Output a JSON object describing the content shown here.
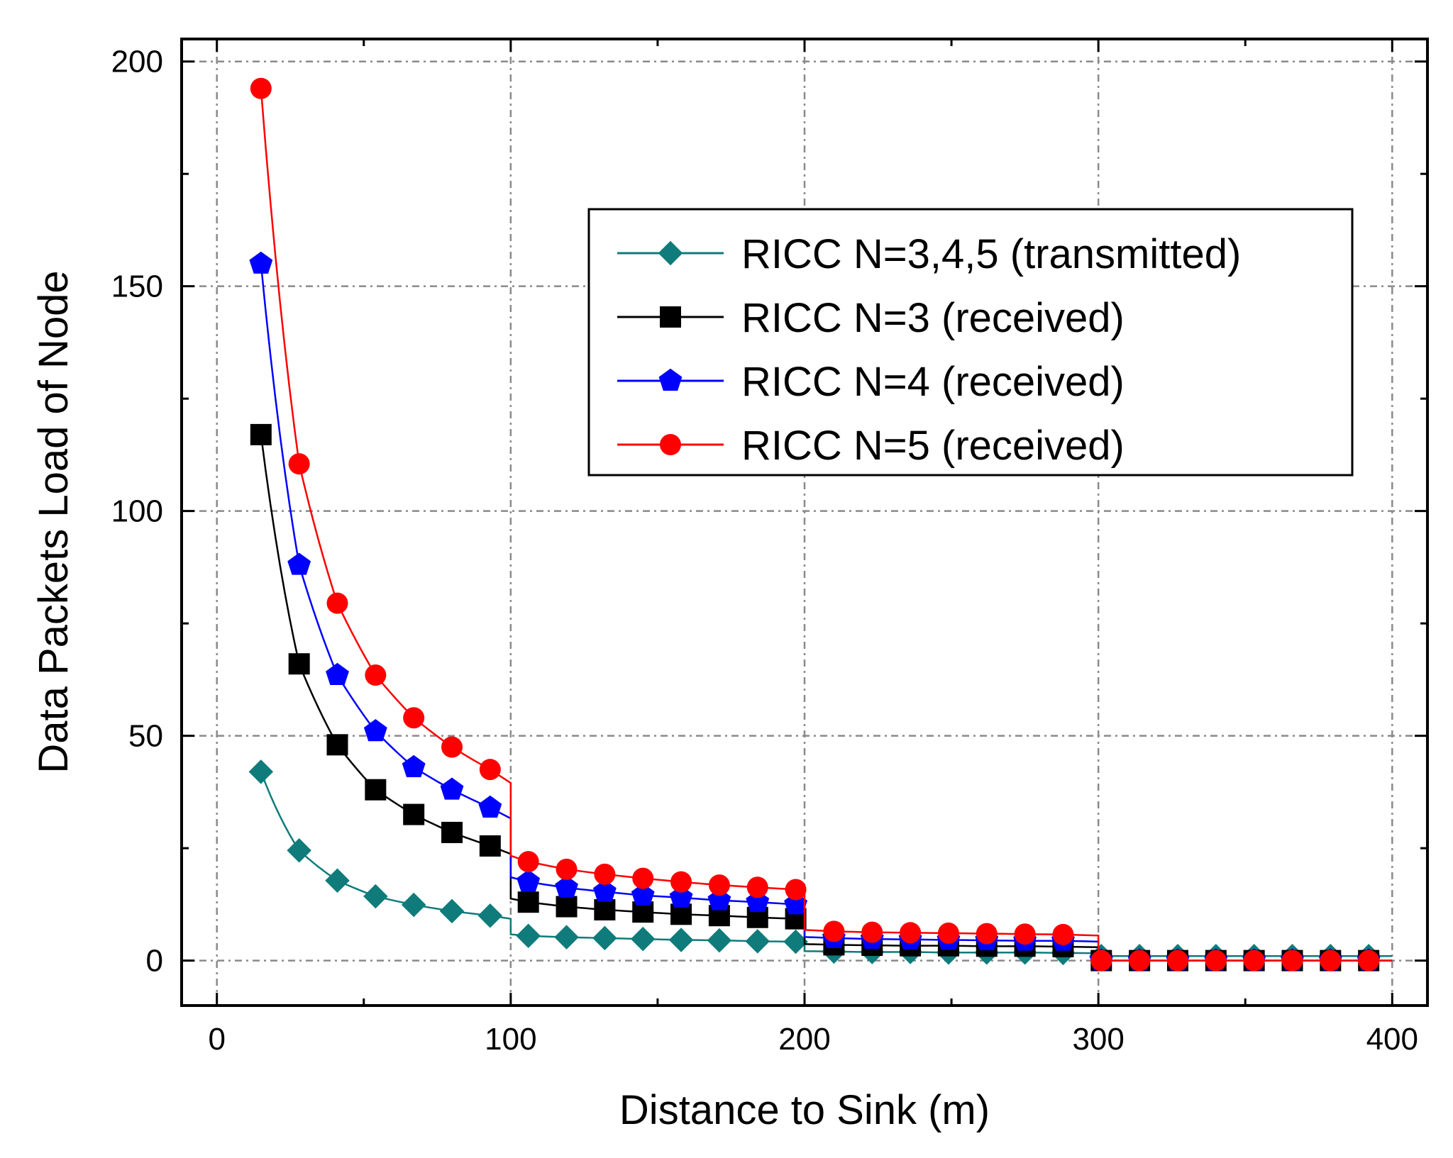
{
  "chart_data": {
    "type": "line",
    "title": "",
    "xlabel": "Distance to Sink (m)",
    "ylabel": "Data Packets Load of Node",
    "xlim": [
      -12,
      412
    ],
    "ylim": [
      -10,
      205
    ],
    "xticks": [
      0,
      100,
      200,
      300,
      400
    ],
    "yticks": [
      0,
      50,
      100,
      150,
      200
    ],
    "tick_labels": {
      "x": [
        "0",
        "100",
        "200",
        "300",
        "400"
      ],
      "y": [
        "0",
        "50",
        "100",
        "150",
        "200"
      ]
    },
    "grid": true,
    "legend_position": "top-right",
    "x": [
      15,
      28,
      41,
      54,
      67,
      80,
      93,
      106,
      119,
      132,
      145,
      158,
      171,
      184,
      197,
      210,
      223,
      236,
      249,
      262,
      275,
      288,
      301,
      314,
      327,
      340,
      353,
      366,
      379,
      392
    ],
    "series": [
      {
        "name": "RICC N=3,4,5 (transmitted)",
        "color": "#0f7b7b",
        "marker": "diamond",
        "values": [
          42,
          24.5,
          17.8,
          14.3,
          12.4,
          11,
          10,
          5.5,
          5.2,
          5,
          4.8,
          4.6,
          4.5,
          4.3,
          4.2,
          2,
          1.9,
          1.9,
          1.8,
          1.8,
          1.8,
          1.7,
          1,
          1,
          1,
          1,
          1,
          1,
          1,
          1
        ]
      },
      {
        "name": "RICC N=3 (received)",
        "color": "#000000",
        "marker": "square",
        "values": [
          117,
          66,
          48,
          38,
          32.5,
          28.5,
          25.5,
          13,
          12,
          11.3,
          10.8,
          10.3,
          10,
          9.6,
          9.3,
          3.5,
          3.4,
          3.3,
          3.3,
          3.2,
          3.2,
          3.1,
          0,
          0,
          0,
          0,
          0,
          0,
          0,
          0
        ]
      },
      {
        "name": "RICC N=4 (received)",
        "color": "#0000ff",
        "marker": "pentagon",
        "values": [
          155,
          88,
          63.5,
          51,
          43,
          38,
          34,
          17.5,
          16.2,
          15.3,
          14.5,
          14,
          13.4,
          13,
          12.5,
          5,
          4.8,
          4.7,
          4.6,
          4.5,
          4.4,
          4.4,
          0,
          0,
          0,
          0,
          0,
          0,
          0,
          0
        ]
      },
      {
        "name": "RICC N=5 (received)",
        "color": "#ff0000",
        "marker": "circle",
        "values": [
          194,
          110.5,
          79.5,
          63.5,
          54,
          47.5,
          42.5,
          22,
          20.3,
          19.2,
          18.3,
          17.5,
          16.8,
          16.3,
          15.8,
          6.5,
          6.3,
          6.2,
          6.1,
          6,
          5.9,
          5.8,
          0,
          0,
          0,
          0,
          0,
          0,
          0,
          0
        ]
      }
    ]
  }
}
